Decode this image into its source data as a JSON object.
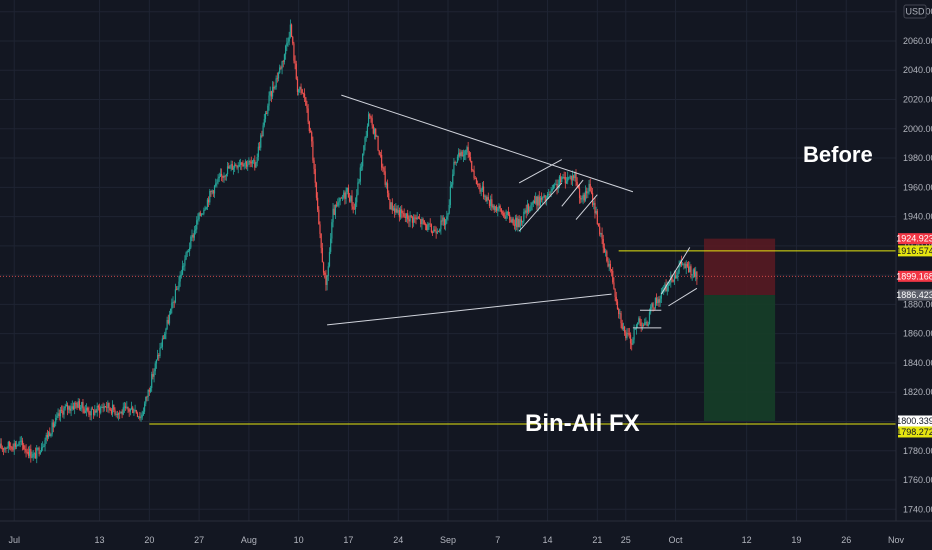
{
  "currency_label": "USD",
  "annotations": {
    "before": "Before",
    "brand": "Bin-Ali FX"
  },
  "colors": {
    "background": "#131722",
    "up": "#26a69a",
    "down": "#ef5350",
    "trendline": "#d1d4dc",
    "support": "#e5e510",
    "stop_zone": "#5c1a22",
    "target_zone": "#163e28"
  },
  "chart_data": {
    "type": "candlestick",
    "title": "",
    "xlabel": "",
    "ylabel": "",
    "ylim": [
      1732,
      2088
    ],
    "x_range": [
      "2023-06-29",
      "2023-11-02"
    ],
    "y_ticks": [
      1740,
      1760,
      1780,
      1800,
      1820,
      1840,
      1860,
      1880,
      1900,
      1920,
      1940,
      1960,
      1980,
      2000,
      2020,
      2040,
      2060,
      2080
    ],
    "y_tick_labels": [
      "1740.000",
      "1760.000",
      "1780.000",
      "1800.000",
      "1820.000",
      "1840.000",
      "1860.000",
      "1880.000",
      "1900.000",
      "1920.000",
      "1940.000",
      "1960.000",
      "1980.000",
      "2000.000",
      "2020.000",
      "2040.000",
      "2060.000",
      "2080.000"
    ],
    "x_ticks": [
      {
        "date": "2023-07-01",
        "label": "Jul"
      },
      {
        "date": "2023-07-13",
        "label": "13"
      },
      {
        "date": "2023-07-20",
        "label": "20"
      },
      {
        "date": "2023-07-27",
        "label": "27"
      },
      {
        "date": "2023-08-03",
        "label": "Aug"
      },
      {
        "date": "2023-08-10",
        "label": "10"
      },
      {
        "date": "2023-08-17",
        "label": "17"
      },
      {
        "date": "2023-08-24",
        "label": "24"
      },
      {
        "date": "2023-08-31",
        "label": "Sep"
      },
      {
        "date": "2023-09-07",
        "label": "7"
      },
      {
        "date": "2023-09-14",
        "label": "14"
      },
      {
        "date": "2023-09-21",
        "label": "21"
      },
      {
        "date": "2023-09-25",
        "label": "25"
      },
      {
        "date": "2023-10-02",
        "label": "Oct"
      },
      {
        "date": "2023-10-12",
        "label": "12"
      },
      {
        "date": "2023-10-19",
        "label": "19"
      },
      {
        "date": "2023-10-26",
        "label": "26"
      },
      {
        "date": "2023-11-02",
        "label": "Nov"
      }
    ],
    "price_path": [
      [
        "2023-06-29",
        1782
      ],
      [
        "2023-07-02",
        1785
      ],
      [
        "2023-07-04",
        1776
      ],
      [
        "2023-07-06",
        1792
      ],
      [
        "2023-07-08",
        1808
      ],
      [
        "2023-07-10",
        1812
      ],
      [
        "2023-07-12",
        1806
      ],
      [
        "2023-07-14",
        1811
      ],
      [
        "2023-07-16",
        1806
      ],
      [
        "2023-07-18",
        1809
      ],
      [
        "2023-07-19",
        1803
      ],
      [
        "2023-07-21",
        1838
      ],
      [
        "2023-07-23",
        1872
      ],
      [
        "2023-07-25",
        1908
      ],
      [
        "2023-07-27",
        1938
      ],
      [
        "2023-07-29",
        1958
      ],
      [
        "2023-07-31",
        1972
      ],
      [
        "2023-08-02",
        1978
      ],
      [
        "2023-08-04",
        1975
      ],
      [
        "2023-08-06",
        2020
      ],
      [
        "2023-08-08",
        2048
      ],
      [
        "2023-08-09",
        2070
      ],
      [
        "2023-08-10",
        2028
      ],
      [
        "2023-08-11",
        2022
      ],
      [
        "2023-08-12",
        1990
      ],
      [
        "2023-08-13",
        1932
      ],
      [
        "2023-08-14",
        1890
      ],
      [
        "2023-08-15",
        1942
      ],
      [
        "2023-08-17",
        1958
      ],
      [
        "2023-08-18",
        1945
      ],
      [
        "2023-08-20",
        2008
      ],
      [
        "2023-08-21",
        1996
      ],
      [
        "2023-08-23",
        1948
      ],
      [
        "2023-08-25",
        1940
      ],
      [
        "2023-08-27",
        1938
      ],
      [
        "2023-08-29",
        1930
      ],
      [
        "2023-08-31",
        1938
      ],
      [
        "2023-09-01",
        1978
      ],
      [
        "2023-09-03",
        1985
      ],
      [
        "2023-09-04",
        1965
      ],
      [
        "2023-09-06",
        1950
      ],
      [
        "2023-09-08",
        1942
      ],
      [
        "2023-09-10",
        1935
      ],
      [
        "2023-09-12",
        1950
      ],
      [
        "2023-09-14",
        1952
      ],
      [
        "2023-09-16",
        1965
      ],
      [
        "2023-09-18",
        1968
      ],
      [
        "2023-09-19",
        1950
      ],
      [
        "2023-09-20",
        1960
      ],
      [
        "2023-09-21",
        1942
      ],
      [
        "2023-09-22",
        1918
      ],
      [
        "2023-09-23",
        1905
      ],
      [
        "2023-09-24",
        1880
      ],
      [
        "2023-09-25",
        1860
      ],
      [
        "2023-09-26",
        1855
      ],
      [
        "2023-09-27",
        1870
      ],
      [
        "2023-09-28",
        1865
      ],
      [
        "2023-09-29",
        1880
      ],
      [
        "2023-09-30",
        1885
      ],
      [
        "2023-10-01",
        1893
      ],
      [
        "2023-10-02",
        1900
      ],
      [
        "2023-10-03",
        1908
      ],
      [
        "2023-10-04",
        1904
      ],
      [
        "2023-10-05",
        1899
      ]
    ],
    "trendlines": [
      {
        "name": "upper-trendline",
        "from": [
          "2023-08-16",
          2023
        ],
        "to": [
          "2023-09-26",
          1957
        ]
      },
      {
        "name": "lower-trendline",
        "from": [
          "2023-08-14",
          1866
        ],
        "to": [
          "2023-09-23",
          1887
        ]
      },
      {
        "name": "bear-flag-upper",
        "from": [
          "2023-09-10",
          1963
        ],
        "to": [
          "2023-09-16",
          1979
        ]
      },
      {
        "name": "bear-flag-lower",
        "from": [
          "2023-09-10",
          1930
        ],
        "to": [
          "2023-09-16",
          1963
        ]
      },
      {
        "name": "small-flag-left",
        "from": [
          "2023-09-16",
          1947
        ],
        "to": [
          "2023-09-19",
          1965
        ]
      },
      {
        "name": "small-flag-right",
        "from": [
          "2023-09-18",
          1938
        ],
        "to": [
          "2023-09-21",
          1955
        ]
      },
      {
        "name": "bottom-support",
        "from": [
          "2023-09-26",
          1864
        ],
        "to": [
          "2023-09-30",
          1864
        ]
      },
      {
        "name": "rising-wedge-upper",
        "from": [
          "2023-09-30",
          1887
        ],
        "to": [
          "2023-10-04",
          1919
        ]
      },
      {
        "name": "rising-wedge-lower",
        "from": [
          "2023-10-01",
          1879
        ],
        "to": [
          "2023-10-05",
          1891
        ]
      },
      {
        "name": "mini-range-top",
        "from": [
          "2023-09-27",
          1876
        ],
        "to": [
          "2023-09-30",
          1876
        ]
      }
    ],
    "support_lines": [
      {
        "name": "resistance-line",
        "from": "2023-09-24",
        "price": 1916.574
      },
      {
        "name": "support-line",
        "from": "2023-07-20",
        "price": 1798.272
      }
    ],
    "current_price": 1899.168,
    "trade_setup": {
      "start": "2023-10-06",
      "end": "2023-10-16",
      "stop": 1924.923,
      "entry": 1886.423,
      "target": 1800.339
    },
    "price_tags": [
      {
        "name": "stop",
        "label": "1924.923",
        "price": 1924.923,
        "bg": "#f23645",
        "fg": "#ffffff"
      },
      {
        "name": "resistance",
        "label": "1916.574",
        "price": 1916.574,
        "bg": "#e5e510",
        "fg": "#131722"
      },
      {
        "name": "current",
        "label": "1899.168",
        "price": 1899.168,
        "bg": "#f23645",
        "fg": "#ffffff"
      },
      {
        "name": "entry",
        "label": "1886.423",
        "price": 1886.423,
        "bg": "#5d606b",
        "fg": "#ffffff"
      },
      {
        "name": "target",
        "label": "1800.339",
        "price": 1800.339,
        "bg": "#ffffff",
        "fg": "#131722"
      },
      {
        "name": "support",
        "label": "1798.272",
        "price": 1798.272,
        "bg": "#e5e510",
        "fg": "#131722"
      }
    ]
  }
}
